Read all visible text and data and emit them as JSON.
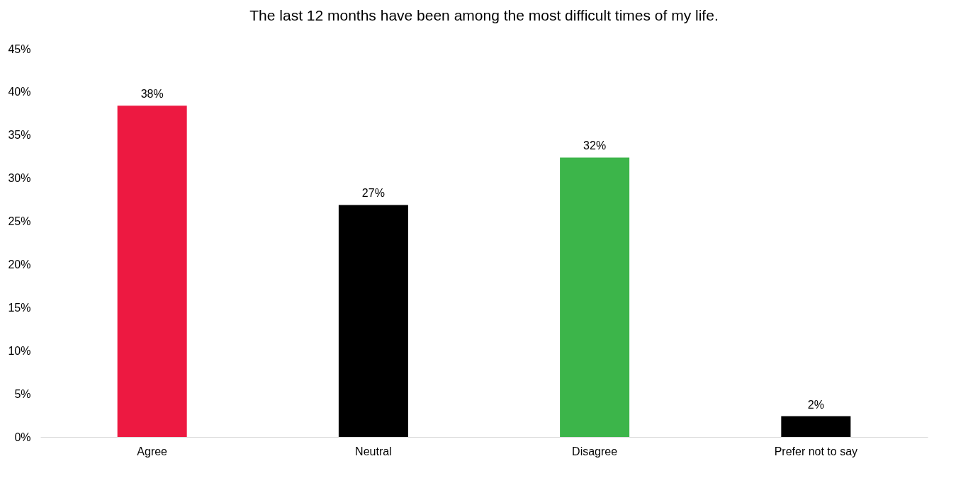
{
  "chart_data": {
    "type": "bar",
    "title": "The last 12 months have been among the most difficult times of my life.",
    "categories": [
      "Agree",
      "Neutral",
      "Disagree",
      "Prefer not to say"
    ],
    "values": [
      38.4,
      26.9,
      32.4,
      2.4
    ],
    "colors": [
      "#ed1941",
      "#000000",
      "#3cb54a",
      "#000000"
    ],
    "value_labels": [
      "38%",
      "27%",
      "32%",
      "2%"
    ],
    "ylim": [
      0,
      45
    ],
    "yticks": [
      {
        "value": 0,
        "label": "0%"
      },
      {
        "value": 5,
        "label": "5%"
      },
      {
        "value": 10,
        "label": "10%"
      },
      {
        "value": 15,
        "label": "15%"
      },
      {
        "value": 20,
        "label": "20%"
      },
      {
        "value": 25,
        "label": "25%"
      },
      {
        "value": 30,
        "label": "30%"
      },
      {
        "value": 35,
        "label": "35%"
      },
      {
        "value": 40,
        "label": "40%"
      },
      {
        "value": 45,
        "label": "45%"
      }
    ],
    "grid": false
  }
}
